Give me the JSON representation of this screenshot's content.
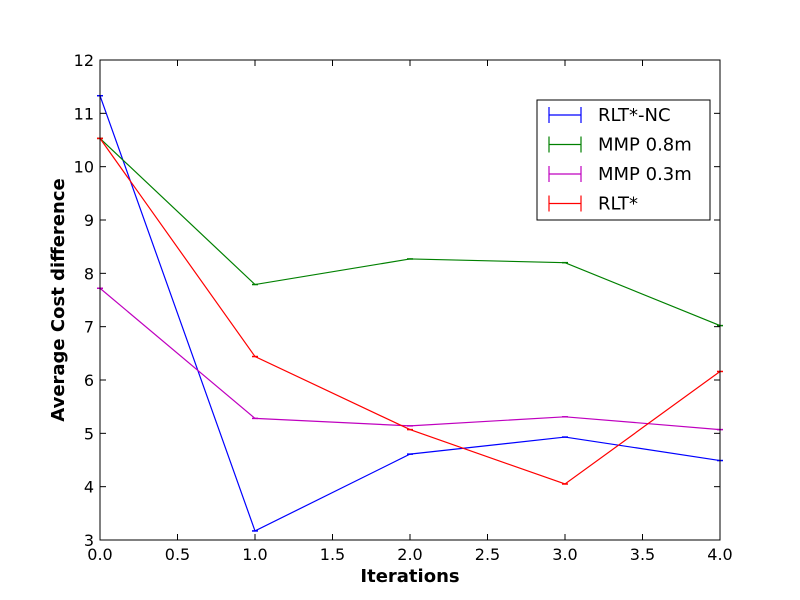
{
  "chart_data": {
    "type": "line",
    "title": "",
    "xlabel": "Iterations",
    "ylabel": "Average Cost difference",
    "x": [
      0.0,
      1.0,
      2.0,
      3.0,
      4.0
    ],
    "xlim": [
      0.0,
      4.0
    ],
    "ylim": [
      3,
      12
    ],
    "xticks": [
      "0.0",
      "0.5",
      "1.0",
      "1.5",
      "2.0",
      "2.5",
      "3.0",
      "3.5",
      "4.0"
    ],
    "yticks": [
      "3",
      "4",
      "5",
      "6",
      "7",
      "8",
      "9",
      "10",
      "11",
      "12"
    ],
    "grid": false,
    "legend_position": "top-right",
    "series": [
      {
        "name": "RLT*-NC",
        "color": "#0000ff",
        "values": [
          11.33,
          3.17,
          4.61,
          4.93,
          4.49
        ]
      },
      {
        "name": "MMP 0.8m",
        "color": "#008000",
        "values": [
          10.53,
          7.79,
          8.27,
          8.2,
          7.02
        ]
      },
      {
        "name": "MMP 0.3m",
        "color": "#bf00bf",
        "values": [
          7.72,
          5.28,
          5.14,
          5.31,
          5.07
        ]
      },
      {
        "name": "RLT*",
        "color": "#ff0000",
        "values": [
          10.53,
          6.44,
          5.07,
          4.05,
          6.16
        ]
      }
    ]
  }
}
